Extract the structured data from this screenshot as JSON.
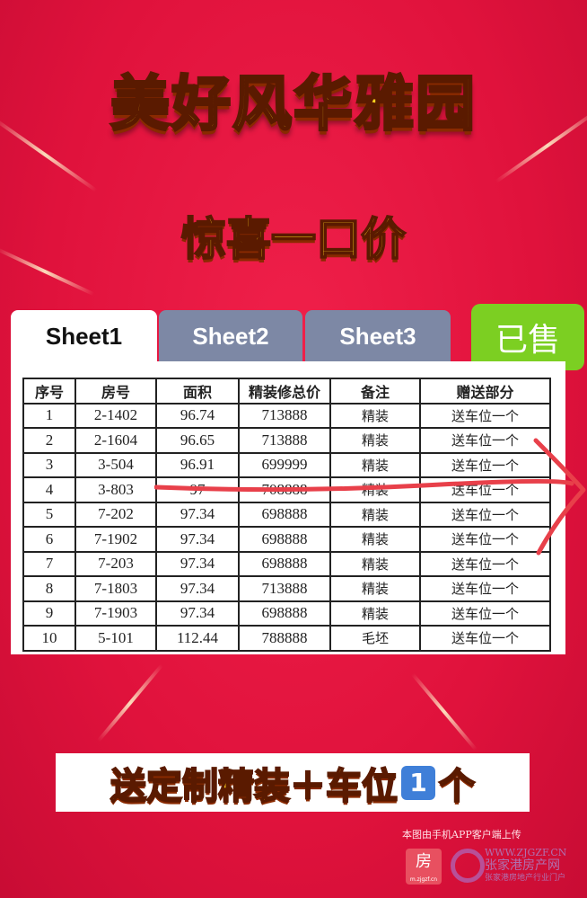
{
  "title": "美好风华雅园",
  "subtitle": "惊喜一口价",
  "tabs": [
    {
      "label": "Sheet1"
    },
    {
      "label": "Sheet2"
    },
    {
      "label": "Sheet3"
    }
  ],
  "sold_label": "已售",
  "table": {
    "headers": [
      "序号",
      "房号",
      "面积",
      "精装修总价",
      "备注",
      "赠送部分"
    ],
    "rows": [
      [
        "1",
        "2-1402",
        "96.74",
        "713888",
        "精装",
        "送车位一个"
      ],
      [
        "2",
        "2-1604",
        "96.65",
        "713888",
        "精装",
        "送车位一个"
      ],
      [
        "3",
        "3-504",
        "96.91",
        "699999",
        "精装",
        "送车位一个"
      ],
      [
        "4",
        "3-803",
        "97",
        "708888",
        "精装",
        "送车位一个"
      ],
      [
        "5",
        "7-202",
        "97.34",
        "698888",
        "精装",
        "送车位一个"
      ],
      [
        "6",
        "7-1902",
        "97.34",
        "698888",
        "精装",
        "送车位一个"
      ],
      [
        "7",
        "7-203",
        "97.34",
        "698888",
        "精装",
        "送车位一个"
      ],
      [
        "8",
        "7-1803",
        "97.34",
        "713888",
        "精装",
        "送车位一个"
      ],
      [
        "9",
        "7-1903",
        "97.34",
        "698888",
        "精装",
        "送车位一个"
      ],
      [
        "10",
        "5-101",
        "112.44",
        "788888",
        "毛坯",
        "送车位一个"
      ]
    ]
  },
  "banner": {
    "text": "送定制精装＋车位",
    "badge": "1",
    "suffix": "个"
  },
  "upload_note": "本图由手机APP客户端上传",
  "watermark": {
    "app_logo": "房",
    "app_url": "m.zjgzf.cn",
    "site": "WWW.ZJGZF.CN",
    "name": "张家港房产网",
    "slogan": "张家港房地产行业门户"
  },
  "colors": {
    "background": "#e0123c",
    "title": "#ffd21e",
    "tab_inactive": "#7d88a5",
    "sold": "#7ccf22",
    "strike": "#e8404a"
  }
}
